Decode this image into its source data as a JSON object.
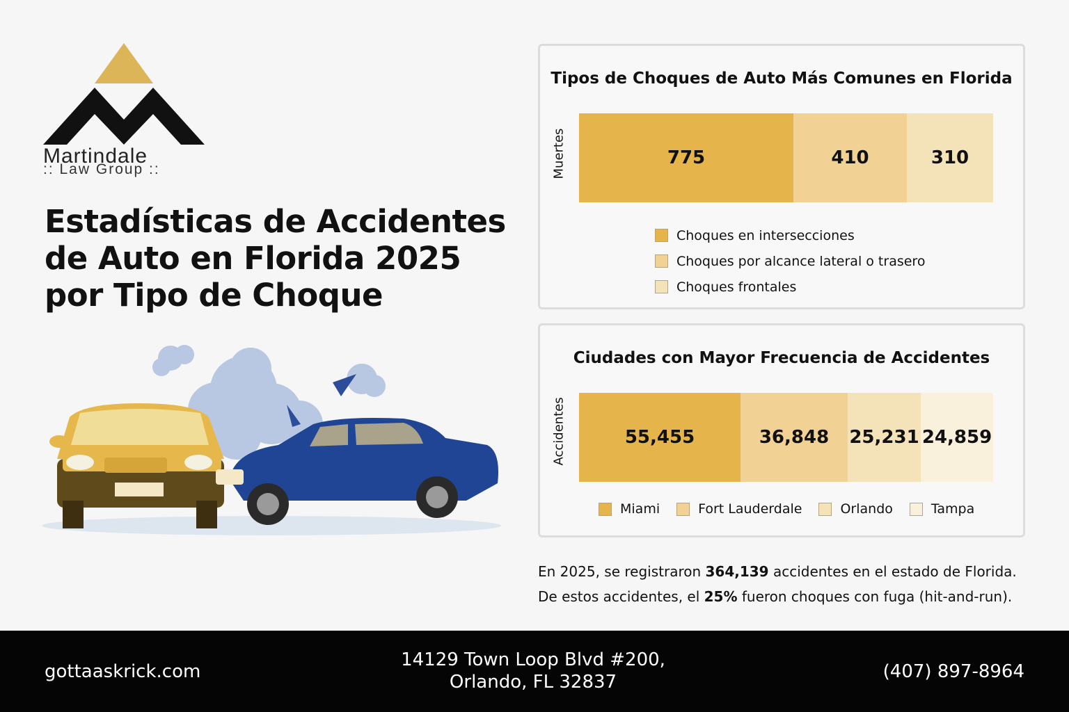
{
  "brand": {
    "name_line1": "Martindale",
    "name_line2": ":: Law Group ::",
    "accent_gold": "#dcb558",
    "logo_black": "#111111"
  },
  "title": "Estadísticas de Accidentes de Auto en Florida 2025 por Tipo de Choque",
  "chart_data": [
    {
      "type": "bar",
      "stacked": true,
      "orientation": "horizontal",
      "title": "Tipos de Choques de Auto Más Comunes en Florida",
      "ylabel": "Muertes",
      "categories": [
        "Muertes"
      ],
      "series": [
        {
          "name": "Choques en intersecciones",
          "values": [
            775
          ],
          "color": "#e5b54c"
        },
        {
          "name": "Choques por alcance lateral o trasero",
          "values": [
            410
          ],
          "color": "#f1d194"
        },
        {
          "name": "Choques frontales",
          "values": [
            310
          ],
          "color": "#f4e3b8"
        }
      ],
      "legend": "bottom"
    },
    {
      "type": "bar",
      "stacked": true,
      "orientation": "horizontal",
      "title": "Ciudades con Mayor Frecuencia de Accidentes",
      "ylabel": "Accidentes",
      "categories": [
        "Accidentes"
      ],
      "series": [
        {
          "name": "Miami",
          "values": [
            55455
          ],
          "label": "55,455",
          "color": "#e5b54c"
        },
        {
          "name": "Fort Lauderdale",
          "values": [
            36848
          ],
          "label": "36,848",
          "color": "#f1d194"
        },
        {
          "name": "Orlando",
          "values": [
            25231
          ],
          "label": "25,231",
          "color": "#f4e3b8"
        },
        {
          "name": "Tampa",
          "values": [
            24859
          ],
          "label": "24,859",
          "color": "#faf1dc"
        }
      ],
      "legend": "bottom"
    }
  ],
  "summary": {
    "line1_pre": "En 2025, se registraron ",
    "line1_bold": "364,139",
    "line1_post": " accidentes en el estado de Florida.",
    "line2_pre": "De estos accidentes, el ",
    "line2_bold": "25%",
    "line2_post": " fueron choques con fuga (hit-and-run)."
  },
  "footer": {
    "website": "gottaaskrick.com",
    "address_line1": "14129 Town Loop Blvd #200,",
    "address_line2": "Orlando, FL 32837",
    "phone": "(407) 897-8964"
  },
  "icons": {
    "logo": "mountain-m-logo",
    "illustration": "car-crash-illustration"
  }
}
